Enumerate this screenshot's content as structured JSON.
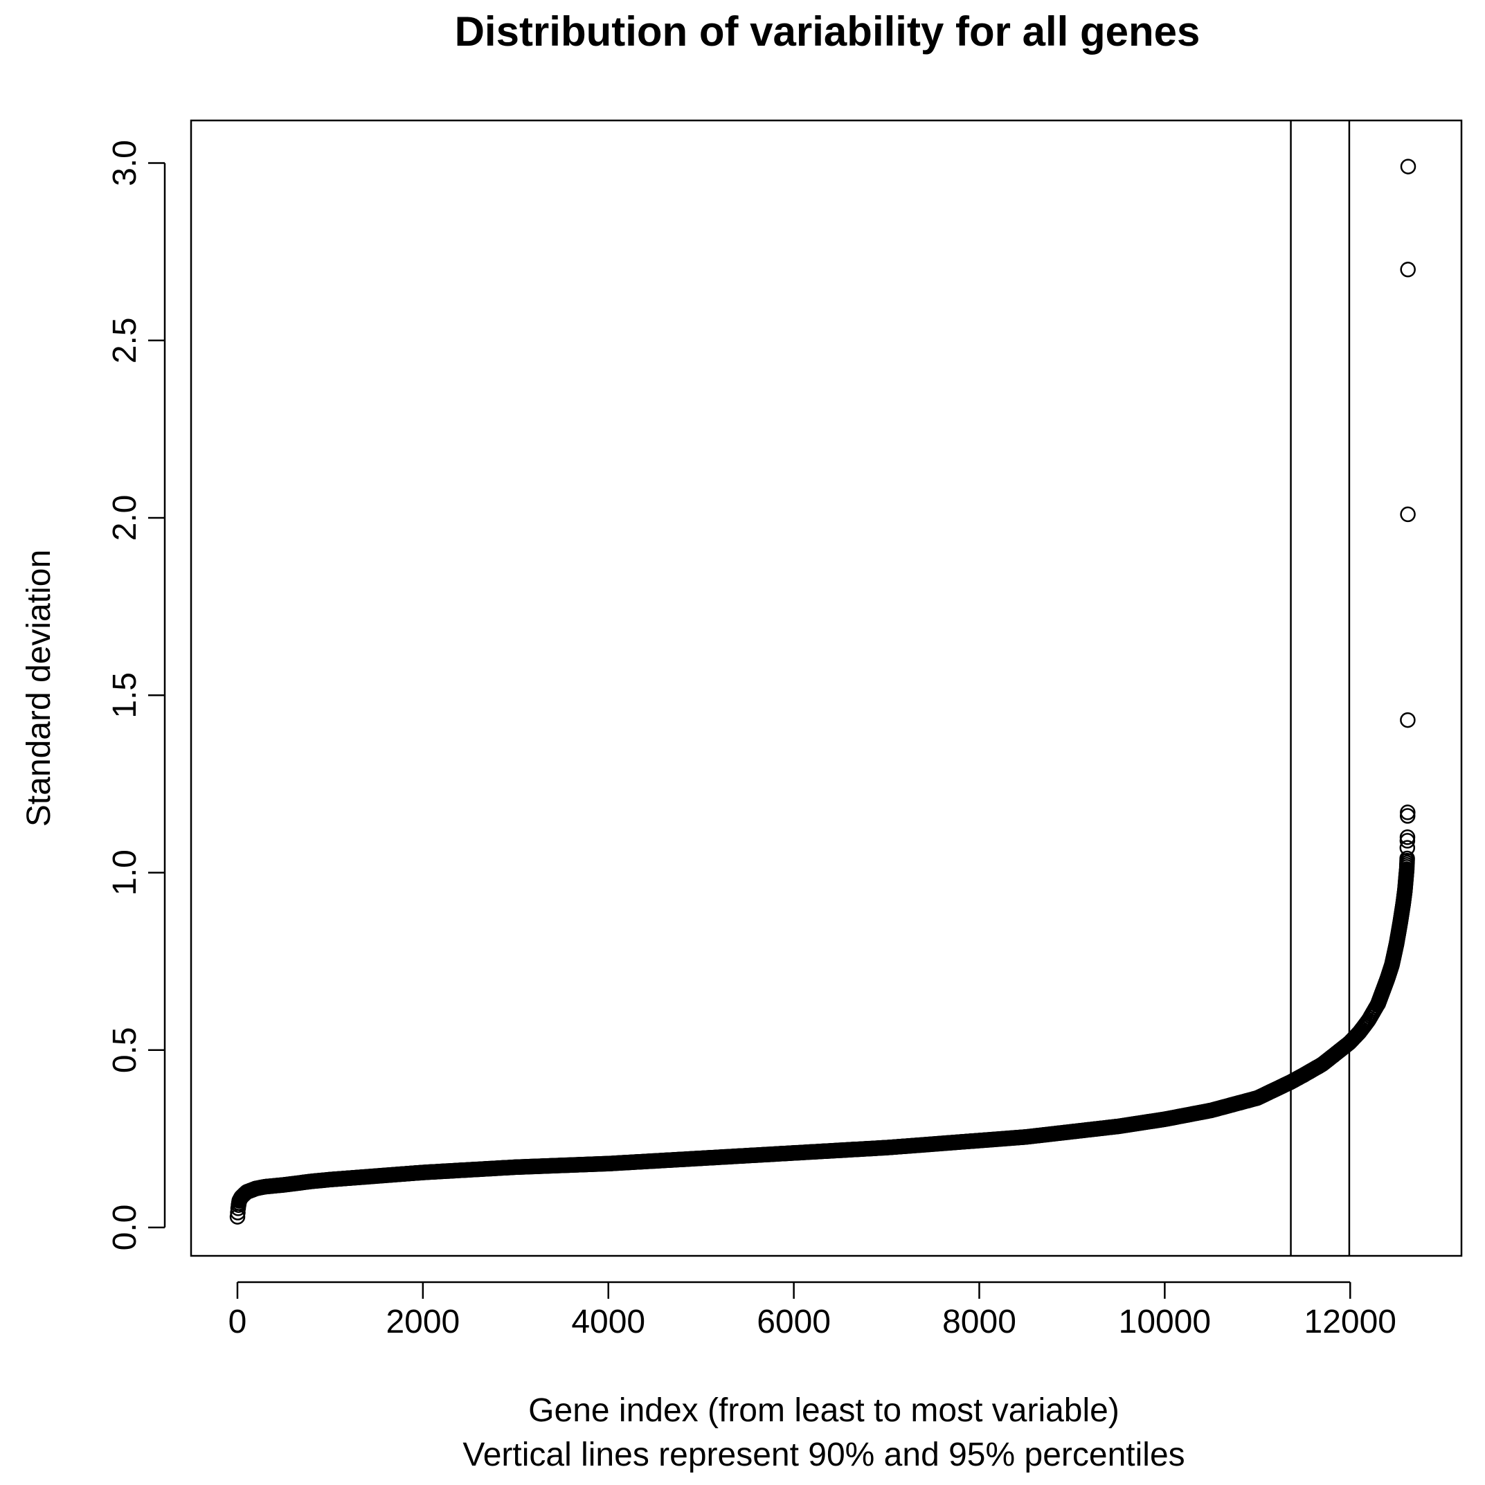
{
  "chart_data": {
    "type": "scatter",
    "title": "Distribution of variability for all genes",
    "xlabel": "Gene index (from least to most variable)",
    "subtitle": "Vertical lines represent 90% and 95% percentiles",
    "ylabel": "Standard deviation",
    "xlim": [
      -500,
      13200
    ],
    "ylim": [
      -0.08,
      3.12
    ],
    "x_ticks": [
      0,
      2000,
      4000,
      6000,
      8000,
      10000,
      12000
    ],
    "y_ticks": [
      0.0,
      0.5,
      1.0,
      1.5,
      2.0,
      2.5,
      3.0
    ],
    "x_tick_labels": [
      "0",
      "2000",
      "4000",
      "6000",
      "8000",
      "10000",
      "12000"
    ],
    "y_tick_labels": [
      "0.0",
      "0.5",
      "1.0",
      "1.5",
      "2.0",
      "2.5",
      "3.0"
    ],
    "vertical_lines": [
      11360,
      11990
    ],
    "n_points": 12625,
    "curve": {
      "x": [
        0,
        5,
        10,
        20,
        40,
        60,
        100,
        150,
        200,
        300,
        500,
        800,
        1000,
        1500,
        2000,
        3000,
        4000,
        5000,
        6000,
        7000,
        8000,
        8500,
        9000,
        9500,
        10000,
        10500,
        11000,
        11360,
        11500,
        11700,
        11990,
        12100,
        12200,
        12300,
        12400,
        12450,
        12500,
        12540,
        12570,
        12590,
        12600,
        12610,
        12615
      ],
      "y": [
        0.03,
        0.045,
        0.06,
        0.075,
        0.085,
        0.09,
        0.1,
        0.105,
        0.11,
        0.115,
        0.12,
        0.13,
        0.135,
        0.145,
        0.155,
        0.17,
        0.18,
        0.195,
        0.21,
        0.225,
        0.245,
        0.255,
        0.27,
        0.285,
        0.305,
        0.33,
        0.365,
        0.41,
        0.43,
        0.46,
        0.52,
        0.55,
        0.585,
        0.63,
        0.7,
        0.74,
        0.8,
        0.86,
        0.91,
        0.95,
        0.98,
        1.01,
        1.04
      ]
    },
    "outliers": [
      {
        "x": 12616,
        "y": 1.07
      },
      {
        "x": 12617,
        "y": 1.09
      },
      {
        "x": 12618,
        "y": 1.1
      },
      {
        "x": 12619,
        "y": 1.16
      },
      {
        "x": 12620,
        "y": 1.17
      },
      {
        "x": 12621,
        "y": 1.43
      },
      {
        "x": 12622,
        "y": 2.01
      },
      {
        "x": 12623,
        "y": 2.7
      },
      {
        "x": 12625,
        "y": 2.99
      }
    ],
    "grid": false,
    "marker": "open-circle",
    "color": "#000000"
  }
}
